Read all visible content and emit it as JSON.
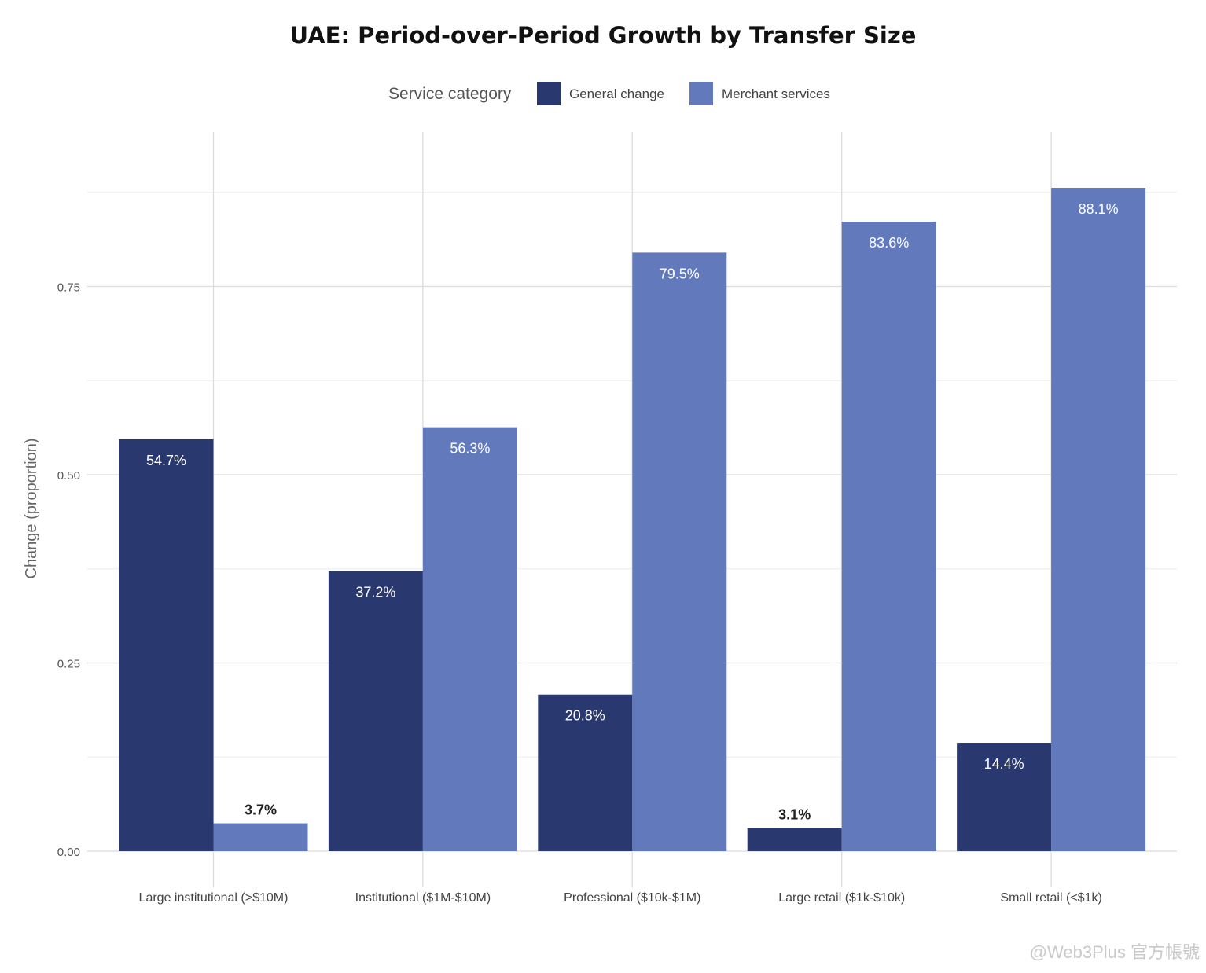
{
  "chart_data": {
    "type": "bar",
    "title": "UAE: Period-over-Period Growth by Transfer Size",
    "ylabel": "Change (proportion)",
    "xlabel": "",
    "legend_title": "Service category",
    "legend_position": "top",
    "grid": true,
    "ylim": [
      0,
      0.92
    ],
    "yticks": [
      "0.00",
      "0.25",
      "0.50",
      "0.75"
    ],
    "ytick_values": [
      0,
      0.25,
      0.5,
      0.75
    ],
    "categories": [
      "Large institutional (>$10M)",
      "Institutional ($1M-$10M)",
      "Professional ($10k-$1M)",
      "Large retail ($1k-$10k)",
      "Small retail (<$1k)"
    ],
    "series": [
      {
        "name": "General change",
        "color": "#2a3870",
        "values": [
          0.547,
          0.372,
          0.208,
          0.031,
          0.144
        ],
        "labels": [
          "54.7%",
          "37.2%",
          "20.8%",
          "3.1%",
          "14.4%"
        ]
      },
      {
        "name": "Merchant services",
        "color": "#6279bb",
        "values": [
          0.037,
          0.563,
          0.795,
          0.836,
          0.881
        ],
        "labels": [
          "3.7%",
          "56.3%",
          "79.5%",
          "83.6%",
          "88.1%"
        ]
      }
    ]
  },
  "watermark": "@Web3Plus 官方帳號"
}
